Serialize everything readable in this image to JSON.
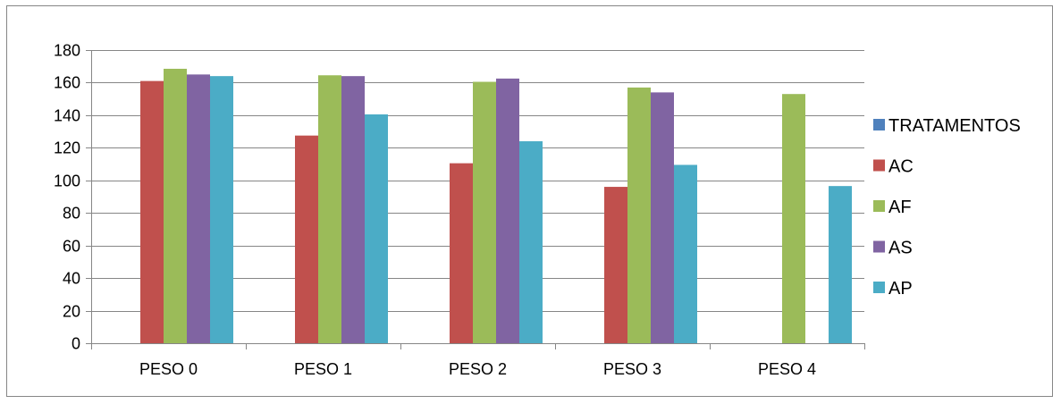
{
  "chart_data": {
    "type": "bar",
    "categories": [
      "PESO 0",
      "PESO 1",
      "PESO 2",
      "PESO 3",
      "PESO 4"
    ],
    "series": [
      {
        "name": "TRATAMENTOS",
        "color": "#4F81BD",
        "values": [
          null,
          null,
          null,
          null,
          null
        ]
      },
      {
        "name": "AC",
        "color": "#C0504D",
        "values": [
          161,
          127.5,
          110.5,
          96,
          null
        ]
      },
      {
        "name": "AF",
        "color": "#9BBB59",
        "values": [
          168.5,
          164.5,
          160.5,
          157,
          153
        ]
      },
      {
        "name": "AS",
        "color": "#8064A2",
        "values": [
          165,
          164,
          162.5,
          154,
          null
        ]
      },
      {
        "name": "AP",
        "color": "#4BACC6",
        "values": [
          164,
          140.5,
          124,
          109.5,
          96.5
        ]
      }
    ],
    "ylim": [
      0,
      180
    ],
    "yticks": [
      0,
      20,
      40,
      60,
      80,
      100,
      120,
      140,
      160,
      180
    ],
    "grid": true,
    "legend_position": "right",
    "title": "",
    "xlabel": "",
    "ylabel": ""
  }
}
